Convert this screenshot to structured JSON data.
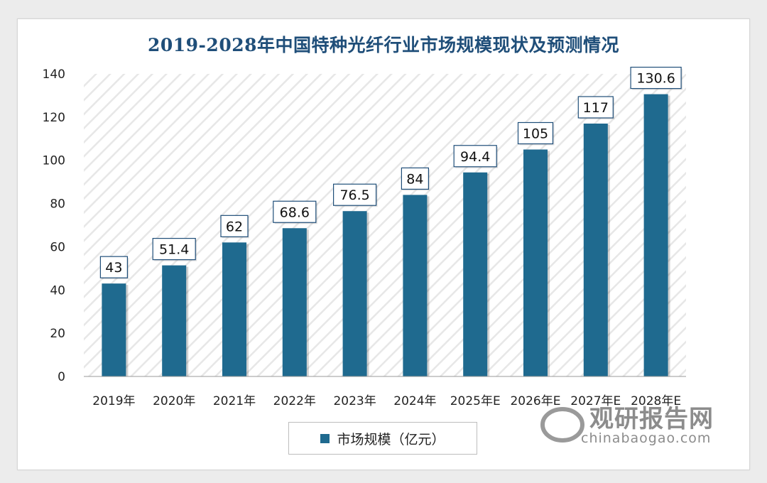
{
  "title": "2019-2028年中国特种光纤行业市场规模现状及预测情况",
  "chart_data": {
    "type": "bar",
    "title": "2019-2028年中国特种光纤行业市场规模现状及预测情况",
    "categories": [
      "2019年",
      "2020年",
      "2021年",
      "2022年",
      "2023年",
      "2024年",
      "2025年E",
      "2026年E",
      "2027年E",
      "2028年E"
    ],
    "series": [
      {
        "name": "市场规模（亿元）",
        "values": [
          43,
          51.4,
          62,
          68.6,
          76.5,
          84,
          94.4,
          105,
          117,
          130.6
        ]
      }
    ],
    "data_labels": [
      "43",
      "51.4",
      "62",
      "68.6",
      "76.5",
      "84",
      "94.4",
      "105",
      "117",
      "130.6"
    ],
    "ylim": [
      0,
      140
    ],
    "yticks": [
      0,
      20,
      40,
      60,
      80,
      100,
      120,
      140
    ],
    "xlabel": "",
    "ylabel": "",
    "grid": false,
    "legend_position": "bottom-center",
    "colors": {
      "bar": "#1f6a8f",
      "title": "#1f4e79",
      "label_border": "#1f4e79"
    }
  },
  "legend": {
    "label": "市场规模（亿元）"
  },
  "watermark": {
    "name": "观研报告网",
    "url": "chinabaogao.com"
  }
}
